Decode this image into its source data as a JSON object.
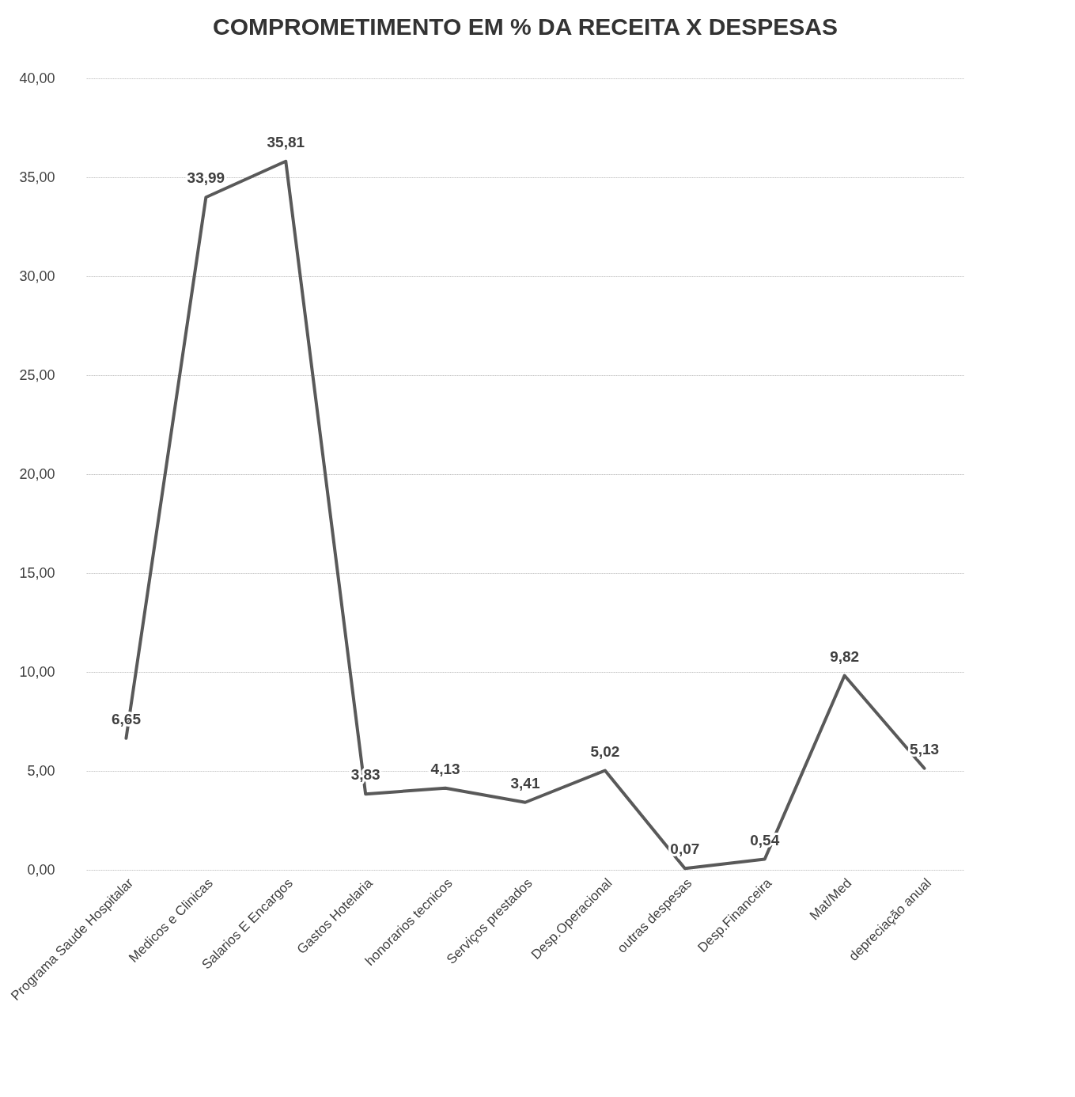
{
  "chart_data": {
    "type": "line",
    "title": "COMPROMETIMENTO EM % DA RECEITA X DESPESAS",
    "categories": [
      "Programa Saude Hospitalar",
      "Medicos e Clinicas",
      "Salarios E Encargos",
      "Gastos Hotelaria",
      "honorarios tecnicos",
      "Serviços prestados",
      "Desp.Operacional",
      "outras despesas",
      "Desp.Financeira",
      "Mat/Med",
      "depreciação anual"
    ],
    "series": [
      {
        "color": "#595959",
        "values": [
          6.65,
          33.99,
          35.81,
          3.83,
          4.13,
          3.41,
          5.02,
          0.07,
          0.54,
          9.82,
          5.13
        ],
        "value_labels": [
          "6,65",
          "33,99",
          "35,81",
          "3,83",
          "4,13",
          "3,41",
          "5,02",
          "0,07",
          "0,54",
          "9,82",
          "5,13"
        ]
      }
    ],
    "ylim": [
      0,
      40
    ],
    "yticks": [
      {
        "value": 0,
        "label": "0,00"
      },
      {
        "value": 5,
        "label": "5,00"
      },
      {
        "value": 10,
        "label": "10,00"
      },
      {
        "value": 15,
        "label": "15,00"
      },
      {
        "value": 20,
        "label": "20,00"
      },
      {
        "value": 25,
        "label": "25,00"
      },
      {
        "value": 30,
        "label": "30,00"
      },
      {
        "value": 35,
        "label": "35,00"
      },
      {
        "value": 40,
        "label": "40,00"
      }
    ],
    "grid": "y",
    "marker": "none",
    "line_style": "solid"
  }
}
